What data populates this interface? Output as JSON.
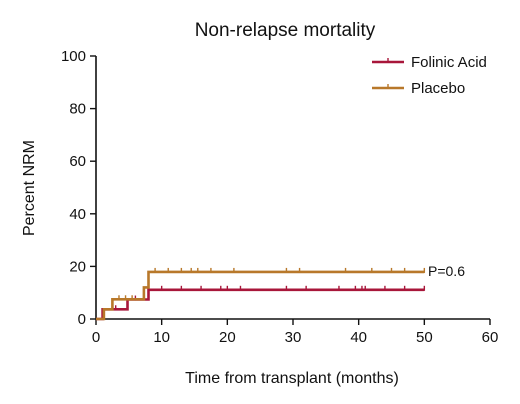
{
  "chart_data": {
    "type": "line",
    "step": true,
    "title": "Non-relapse mortality",
    "xlabel": "Time from transplant (months)",
    "ylabel": "Percent NRM",
    "xlim": [
      0,
      60
    ],
    "ylim": [
      0,
      100
    ],
    "xticks": [
      0,
      10,
      20,
      30,
      40,
      50,
      60
    ],
    "yticks": [
      0,
      20,
      40,
      60,
      80,
      100
    ],
    "grid": false,
    "legend_position": "top-right",
    "annotation": "P=0.6",
    "series": [
      {
        "name": "Folinic Acid",
        "color": "#a8163a",
        "steps": [
          [
            0,
            0
          ],
          [
            1,
            0
          ],
          [
            1,
            3.7
          ],
          [
            4.8,
            3.7
          ],
          [
            4.8,
            7.4
          ],
          [
            8,
            7.4
          ],
          [
            8,
            11.1
          ],
          [
            50,
            11.1
          ]
        ],
        "censored": [
          3,
          6,
          10,
          13,
          16,
          19,
          20,
          22,
          29,
          32,
          37,
          39.5,
          40.5,
          41,
          44,
          47,
          50
        ]
      },
      {
        "name": "Placebo",
        "color": "#b8782a",
        "steps": [
          [
            0,
            0
          ],
          [
            1.2,
            0
          ],
          [
            1.2,
            3.7
          ],
          [
            2.5,
            3.7
          ],
          [
            2.5,
            7.5
          ],
          [
            7.3,
            7.5
          ],
          [
            7.3,
            12
          ],
          [
            8,
            12
          ],
          [
            8,
            17.9
          ],
          [
            50,
            17.9
          ]
        ],
        "censored": [
          3.5,
          4.5,
          5.5,
          9,
          11,
          13,
          14.5,
          15.5,
          17.5,
          21,
          29,
          31,
          38,
          42,
          45,
          47,
          50
        ]
      }
    ]
  }
}
